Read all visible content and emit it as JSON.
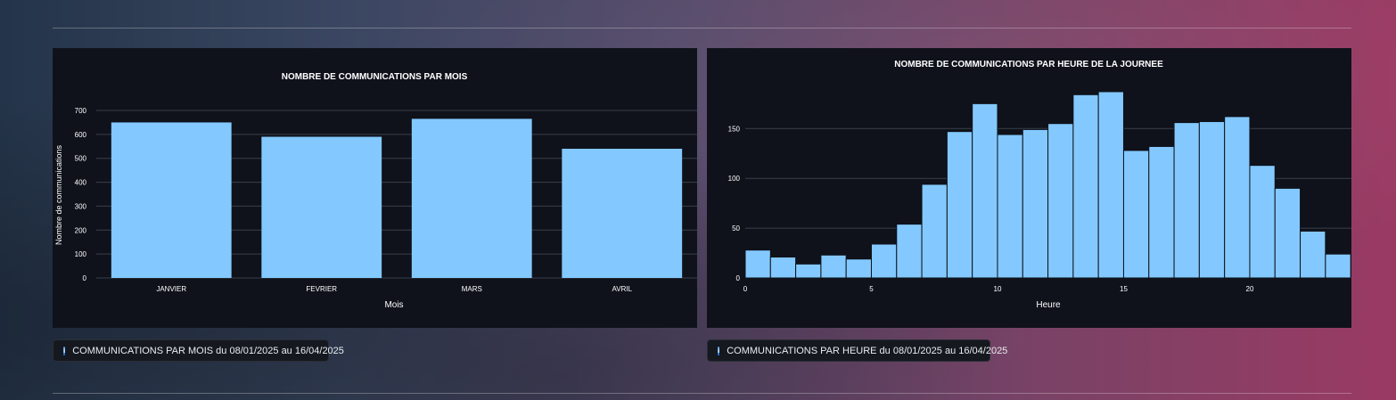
{
  "notes": {
    "month": "COMMUNICATIONS PAR MOIS du 08/01/2025 au 16/04/2025",
    "hour": "COMMUNICATIONS PAR HEURE du 08/01/2025 au 16/04/2025"
  },
  "colors": {
    "bar": "#83c9ff",
    "panel": "#0f121b",
    "grid": "#3a3f4a"
  },
  "chart_data": [
    {
      "type": "bar",
      "title": "NOMBRE DE COMMUNICATIONS PAR MOIS",
      "xlabel": "Mois",
      "ylabel": "Nombre de communications",
      "categories": [
        "JANVIER",
        "FEVRIER",
        "MARS",
        "AVRIL"
      ],
      "values": [
        650,
        590,
        665,
        540
      ],
      "ylim": [
        0,
        700
      ],
      "yticks": [
        0,
        100,
        200,
        300,
        400,
        500,
        600,
        700
      ],
      "grid": true
    },
    {
      "type": "bar",
      "title": "NOMBRE DE COMMUNICATIONS PAR HEURE DE LA JOURNEE",
      "xlabel": "Heure",
      "ylabel": "",
      "x": [
        0,
        1,
        2,
        3,
        4,
        5,
        6,
        7,
        8,
        9,
        10,
        11,
        12,
        13,
        14,
        15,
        16,
        17,
        18,
        19,
        20,
        21,
        22,
        23
      ],
      "values": [
        28,
        21,
        14,
        23,
        19,
        34,
        54,
        94,
        147,
        175,
        144,
        149,
        155,
        184,
        187,
        128,
        132,
        156,
        157,
        162,
        113,
        90,
        47,
        24
      ],
      "xlim": [
        0,
        23.5
      ],
      "ylim": [
        0,
        195
      ],
      "xticks": [
        0,
        5,
        10,
        15,
        20
      ],
      "yticks": [
        0,
        50,
        100,
        150
      ],
      "grid": true
    }
  ]
}
